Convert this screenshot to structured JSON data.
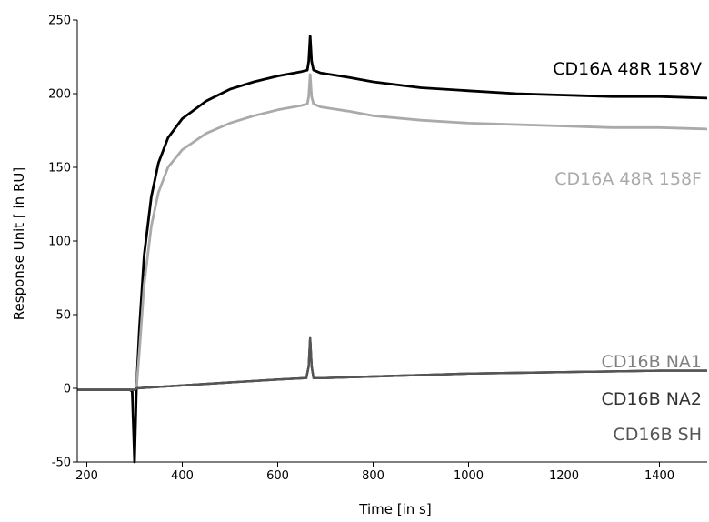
{
  "chart_data": {
    "type": "line",
    "title": "",
    "xlabel": "Time [in s]",
    "ylabel": "Response Unit [ in RU]",
    "xlim": [
      180,
      1500
    ],
    "ylim": [
      -50,
      250
    ],
    "xticks": [
      200,
      400,
      600,
      800,
      1000,
      1200,
      1400
    ],
    "yticks": [
      -50,
      0,
      50,
      100,
      150,
      200,
      250
    ],
    "grid": false,
    "legend": "none",
    "series": [
      {
        "name": "CD16A 48R 158V",
        "color": "#000000",
        "points": [
          [
            180,
            -1
          ],
          [
            290,
            -1
          ],
          [
            295,
            -2
          ],
          [
            300,
            -50
          ],
          [
            304,
            0
          ],
          [
            310,
            40
          ],
          [
            320,
            90
          ],
          [
            335,
            130
          ],
          [
            350,
            153
          ],
          [
            370,
            170
          ],
          [
            400,
            183
          ],
          [
            450,
            195
          ],
          [
            500,
            203
          ],
          [
            550,
            208
          ],
          [
            600,
            212
          ],
          [
            650,
            215
          ],
          [
            662,
            216
          ],
          [
            665,
            222
          ],
          [
            668,
            239
          ],
          [
            671,
            222
          ],
          [
            675,
            216
          ],
          [
            690,
            214
          ],
          [
            750,
            211
          ],
          [
            800,
            208
          ],
          [
            900,
            204
          ],
          [
            1000,
            202
          ],
          [
            1100,
            200
          ],
          [
            1200,
            199
          ],
          [
            1300,
            198
          ],
          [
            1400,
            198
          ],
          [
            1500,
            197
          ]
        ]
      },
      {
        "name": "CD16A 48R 158F",
        "color": "#aaaaaa",
        "points": [
          [
            180,
            -1
          ],
          [
            300,
            -1
          ],
          [
            304,
            0
          ],
          [
            310,
            25
          ],
          [
            320,
            70
          ],
          [
            335,
            110
          ],
          [
            350,
            133
          ],
          [
            370,
            150
          ],
          [
            400,
            162
          ],
          [
            450,
            173
          ],
          [
            500,
            180
          ],
          [
            550,
            185
          ],
          [
            600,
            189
          ],
          [
            650,
            192
          ],
          [
            662,
            193
          ],
          [
            665,
            198
          ],
          [
            668,
            213
          ],
          [
            671,
            198
          ],
          [
            675,
            193
          ],
          [
            690,
            191
          ],
          [
            750,
            188
          ],
          [
            800,
            185
          ],
          [
            900,
            182
          ],
          [
            1000,
            180
          ],
          [
            1100,
            179
          ],
          [
            1200,
            178
          ],
          [
            1300,
            177
          ],
          [
            1400,
            177
          ],
          [
            1500,
            176
          ]
        ]
      },
      {
        "name": "CD16B NA1",
        "color": "#808080",
        "points": [
          [
            180,
            -1
          ],
          [
            300,
            -1
          ],
          [
            304,
            0
          ],
          [
            350,
            1
          ],
          [
            400,
            2
          ],
          [
            500,
            4
          ],
          [
            600,
            6
          ],
          [
            660,
            7
          ],
          [
            665,
            15
          ],
          [
            668,
            34
          ],
          [
            671,
            15
          ],
          [
            675,
            7
          ],
          [
            700,
            7
          ],
          [
            800,
            8
          ],
          [
            900,
            9
          ],
          [
            1000,
            10
          ],
          [
            1100,
            10.5
          ],
          [
            1200,
            11
          ],
          [
            1300,
            11.5
          ],
          [
            1400,
            12
          ],
          [
            1500,
            12
          ]
        ]
      },
      {
        "name": "CD16B NA2",
        "color": "#333333",
        "points": [
          [
            180,
            -1
          ],
          [
            300,
            -1
          ],
          [
            304,
            0
          ],
          [
            350,
            1
          ],
          [
            400,
            2
          ],
          [
            500,
            4
          ],
          [
            600,
            6
          ],
          [
            660,
            7
          ],
          [
            665,
            15
          ],
          [
            668,
            34
          ],
          [
            671,
            15
          ],
          [
            675,
            7
          ],
          [
            700,
            7
          ],
          [
            800,
            8
          ],
          [
            900,
            9
          ],
          [
            1000,
            10
          ],
          [
            1100,
            10.5
          ],
          [
            1200,
            11
          ],
          [
            1300,
            11.5
          ],
          [
            1400,
            12
          ],
          [
            1500,
            12
          ]
        ]
      },
      {
        "name": "CD16B SH",
        "color": "#555555",
        "points": [
          [
            180,
            -1
          ],
          [
            300,
            -1
          ],
          [
            304,
            0
          ],
          [
            350,
            1
          ],
          [
            400,
            2
          ],
          [
            500,
            4
          ],
          [
            600,
            6
          ],
          [
            660,
            7
          ],
          [
            665,
            15
          ],
          [
            668,
            34
          ],
          [
            671,
            15
          ],
          [
            675,
            7
          ],
          [
            700,
            7
          ],
          [
            800,
            8
          ],
          [
            900,
            9
          ],
          [
            1000,
            10
          ],
          [
            1100,
            10.5
          ],
          [
            1200,
            11
          ],
          [
            1300,
            11.5
          ],
          [
            1400,
            12
          ],
          [
            1500,
            12
          ]
        ]
      }
    ]
  }
}
